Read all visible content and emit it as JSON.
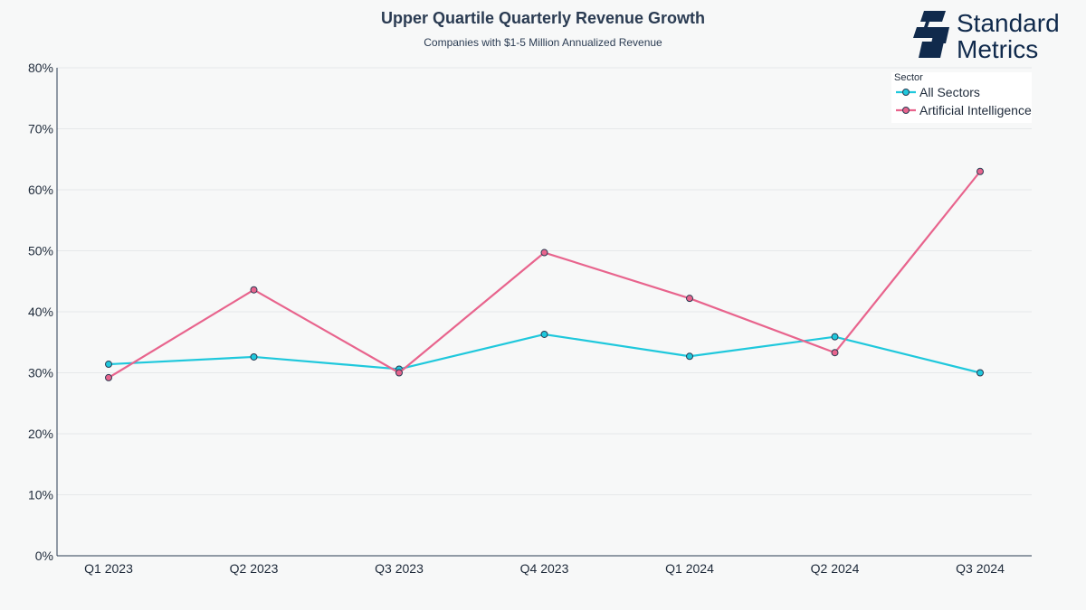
{
  "logo": {
    "line1": "Standard",
    "line2": "Metrics",
    "color": "#102a4c"
  },
  "chart_data": {
    "type": "line",
    "title": "Upper Quartile Quarterly Revenue Growth",
    "subtitle": "Companies with $1-5 Million Annualized Revenue",
    "xlabel": "",
    "ylabel": "",
    "categories": [
      "Q1 2023",
      "Q2 2023",
      "Q3 2023",
      "Q4 2023",
      "Q1 2024",
      "Q2 2024",
      "Q3 2024"
    ],
    "ylim": [
      0,
      80
    ],
    "yticks": [
      0,
      10,
      20,
      30,
      40,
      50,
      60,
      70,
      80
    ],
    "ytick_labels": [
      "0%",
      "10%",
      "20%",
      "30%",
      "40%",
      "50%",
      "60%",
      "70%",
      "80%"
    ],
    "grid": true,
    "legend": {
      "title": "Sector",
      "position": "top-right"
    },
    "series": [
      {
        "name": "All Sectors",
        "color": "#1fc8dc",
        "values": [
          31.4,
          32.6,
          30.6,
          36.3,
          32.7,
          35.9,
          30.0
        ]
      },
      {
        "name": "Artificial Intelligence",
        "color": "#e8648d",
        "values": [
          29.2,
          43.6,
          30.0,
          49.7,
          42.2,
          33.3,
          63.0
        ]
      }
    ]
  }
}
